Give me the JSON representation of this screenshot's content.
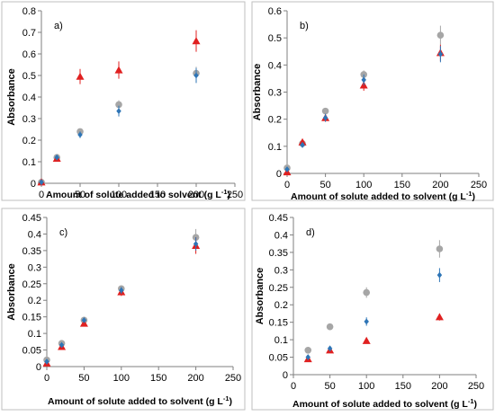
{
  "colors": {
    "blue": "#2e75b6",
    "red": "#e02020",
    "gray": "#a6a6a6",
    "axis": "#7f7f7f",
    "frame": "#bfbfbf"
  },
  "chart_data": [
    {
      "type": "scatter",
      "panel_label": "a)",
      "xlabel": "Amount of solute added to solvent",
      "xlabel_unit": "(g L",
      "xlabel_sup": "-1",
      "xlabel_close": ")",
      "ylabel": "Absorbance",
      "xlim": [
        0,
        250
      ],
      "ylim": [
        0,
        0.8
      ],
      "xticks": [
        0,
        50,
        100,
        150,
        200,
        250
      ],
      "xtick_labels": [
        "0",
        "50",
        "100",
        "150",
        "200",
        "250"
      ],
      "yticks": [
        0,
        0.1,
        0.2,
        0.3,
        0.4,
        0.5,
        0.6,
        0.7,
        0.8
      ],
      "ytick_labels": [
        "0",
        "0.1",
        "0.2",
        "0.3",
        "0.4",
        "0.5",
        "0.6",
        "0.7",
        "0.8"
      ],
      "series": [
        {
          "marker": "diamond",
          "color": "#2e75b6",
          "x": [
            0,
            20,
            50,
            100,
            200
          ],
          "y": [
            0.005,
            0.12,
            0.225,
            0.335,
            0.5
          ],
          "err": [
            0,
            0.01,
            0.015,
            0.025,
            0.035
          ]
        },
        {
          "marker": "triangle",
          "color": "#e02020",
          "x": [
            0,
            20,
            50,
            100,
            200
          ],
          "y": [
            0.005,
            0.115,
            0.495,
            0.525,
            0.66
          ],
          "err": [
            0,
            0.01,
            0.035,
            0.04,
            0.05
          ]
        },
        {
          "marker": "circle",
          "color": "#a6a6a6",
          "x": [
            0,
            20,
            50,
            100,
            200
          ],
          "y": [
            0.005,
            0.12,
            0.24,
            0.365,
            0.51
          ],
          "err": [
            0,
            0.01,
            0.01,
            0.02,
            0.03
          ]
        }
      ]
    },
    {
      "type": "scatter",
      "panel_label": "b)",
      "xlabel": "Amount of solute added to solvent",
      "xlabel_unit": "(g L",
      "xlabel_sup": "-1",
      "xlabel_close": ")",
      "ylabel": "Absorbance",
      "xlim": [
        0,
        250
      ],
      "ylim": [
        0,
        0.6
      ],
      "xticks": [
        0,
        50,
        100,
        150,
        200,
        250
      ],
      "xtick_labels": [
        "0",
        "50",
        "100",
        "150",
        "200",
        "250"
      ],
      "yticks": [
        0,
        0.1,
        0.2,
        0.3,
        0.4,
        0.5,
        0.6
      ],
      "ytick_labels": [
        "0",
        "0.1",
        "0.2",
        "0.3",
        "0.4",
        "0.5",
        "0.6"
      ],
      "series": [
        {
          "marker": "diamond",
          "color": "#2e75b6",
          "x": [
            0,
            20,
            50,
            100,
            200
          ],
          "y": [
            0.015,
            0.105,
            0.205,
            0.345,
            0.44
          ],
          "err": [
            0,
            0.01,
            0.015,
            0.02,
            0.03
          ]
        },
        {
          "marker": "triangle",
          "color": "#e02020",
          "x": [
            0,
            20,
            50,
            100,
            200
          ],
          "y": [
            0.005,
            0.115,
            0.205,
            0.325,
            0.445
          ],
          "err": [
            0,
            0.01,
            0.01,
            0.02,
            0.03
          ]
        },
        {
          "marker": "circle",
          "color": "#a6a6a6",
          "x": [
            0,
            20,
            50,
            100,
            200
          ],
          "y": [
            0.02,
            0.11,
            0.23,
            0.365,
            0.51
          ],
          "err": [
            0,
            0.01,
            0.01,
            0.015,
            0.035
          ]
        }
      ]
    },
    {
      "type": "scatter",
      "panel_label": "c)",
      "xlabel": "Amount of solute added to solvent",
      "xlabel_unit": "(g L",
      "xlabel_sup": "-1",
      "xlabel_close": ")",
      "ylabel": "Absorbance",
      "xlim": [
        0,
        250
      ],
      "ylim": [
        0,
        0.45
      ],
      "xticks": [
        0,
        50,
        100,
        150,
        200,
        250
      ],
      "xtick_labels": [
        "0",
        "50",
        "100",
        "150",
        "200",
        "250"
      ],
      "yticks": [
        0,
        0.05,
        0.1,
        0.15,
        0.2,
        0.25,
        0.3,
        0.35,
        0.4,
        0.45
      ],
      "ytick_labels": [
        "0",
        "0.05",
        "0.1",
        "0.15",
        "0.2",
        "0.25",
        "0.3",
        "0.35",
        "0.4",
        "0.45"
      ],
      "series": [
        {
          "marker": "diamond",
          "color": "#2e75b6",
          "x": [
            0,
            20,
            50,
            100,
            200
          ],
          "y": [
            0.015,
            0.065,
            0.14,
            0.23,
            0.37
          ],
          "err": [
            0,
            0.005,
            0.005,
            0.01,
            0.02
          ]
        },
        {
          "marker": "triangle",
          "color": "#e02020",
          "x": [
            0,
            20,
            50,
            100,
            200
          ],
          "y": [
            0.01,
            0.06,
            0.13,
            0.225,
            0.365
          ],
          "err": [
            0,
            0.005,
            0.005,
            0.012,
            0.025
          ]
        },
        {
          "marker": "circle",
          "color": "#a6a6a6",
          "x": [
            0,
            20,
            50,
            100,
            200
          ],
          "y": [
            0.02,
            0.07,
            0.14,
            0.235,
            0.39
          ],
          "err": [
            0,
            0.005,
            0.005,
            0.01,
            0.025
          ]
        }
      ]
    },
    {
      "type": "scatter",
      "panel_label": "d)",
      "xlabel": "Amount of solute added to solvent",
      "xlabel_unit": "(g L",
      "xlabel_sup": "-1",
      "xlabel_close": ")",
      "ylabel": "Absorbance",
      "xlim": [
        0,
        250
      ],
      "ylim": [
        0,
        0.45
      ],
      "xticks": [
        0,
        50,
        100,
        150,
        200,
        250
      ],
      "xtick_labels": [
        "0",
        "50",
        "100",
        "150",
        "200",
        "250"
      ],
      "yticks": [
        0,
        0.05,
        0.1,
        0.15,
        0.2,
        0.25,
        0.3,
        0.35,
        0.4,
        0.45
      ],
      "ytick_labels": [
        "0",
        "0.05",
        "0.1",
        "0.15",
        "0.2",
        "0.25",
        "0.3",
        "0.35",
        "0.4",
        "0.45"
      ],
      "series": [
        {
          "marker": "diamond",
          "color": "#2e75b6",
          "x": [
            20,
            50,
            100,
            200
          ],
          "y": [
            0.05,
            0.075,
            0.152,
            0.285
          ],
          "err": [
            0.005,
            0.005,
            0.012,
            0.02
          ]
        },
        {
          "marker": "triangle",
          "color": "#e02020",
          "x": [
            20,
            50,
            100,
            200
          ],
          "y": [
            0.045,
            0.07,
            0.097,
            0.165
          ],
          "err": [
            0.005,
            0.005,
            0.005,
            0.01
          ]
        },
        {
          "marker": "circle",
          "color": "#a6a6a6",
          "x": [
            20,
            50,
            100,
            200
          ],
          "y": [
            0.07,
            0.137,
            0.235,
            0.36
          ],
          "err": [
            0.005,
            0.005,
            0.015,
            0.025
          ]
        }
      ]
    }
  ]
}
